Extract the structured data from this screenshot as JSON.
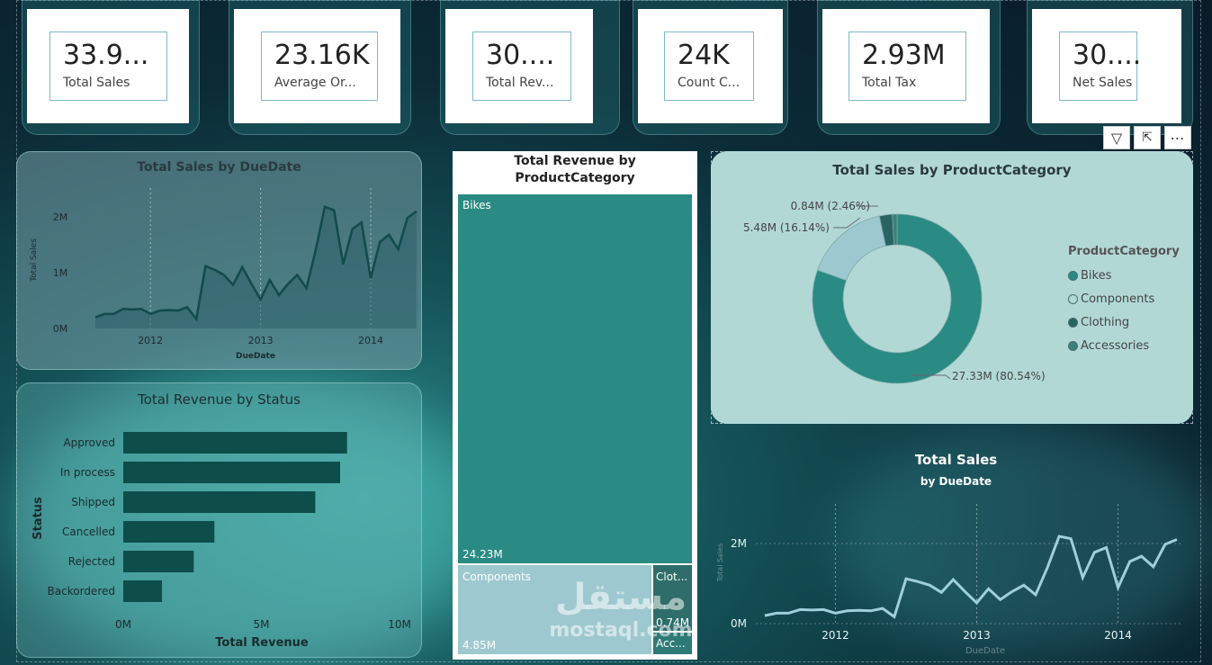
{
  "kpis": [
    {
      "value": "33.9...",
      "label": "Total Sales"
    },
    {
      "value": "23.16K",
      "label": "Average Or..."
    },
    {
      "value": "30....",
      "label": "Total Rev..."
    },
    {
      "value": "24K",
      "label": "Count C..."
    },
    {
      "value": "2.93M",
      "label": "Total Tax"
    },
    {
      "value": "30....",
      "label": "Net Sales"
    }
  ],
  "line1": {
    "title": "Total Sales by DueDate",
    "xlabel": "DueDate",
    "ylabel": "Total Sales",
    "yticks": [
      "2M",
      "1M",
      "0M"
    ],
    "xticks": [
      "2012",
      "2013",
      "2014"
    ]
  },
  "bars": {
    "title": "Total Revenue by Status",
    "xlabel": "Total Revenue",
    "ylabel": "Status",
    "xticks": [
      "0M",
      "5M",
      "10M"
    ]
  },
  "treemap": {
    "title_line1": "Total Revenue by",
    "title_line2": "ProductCategory",
    "tiles": [
      {
        "label": "Bikes",
        "value": "24.23M"
      },
      {
        "label": "Components",
        "value": "4.85M"
      },
      {
        "label": "Clot...",
        "value": "0.74M"
      },
      {
        "label": "Acc...",
        "value": ""
      }
    ]
  },
  "donut": {
    "title": "Total Sales by ProductCategory",
    "legend_title": "ProductCategory",
    "labels": {
      "bikes": "27.33M (80.54%)",
      "components": "5.48M (16.14%)",
      "clothing": "0.84M (2.46%)"
    }
  },
  "line2": {
    "title": "Total Sales",
    "subtitle": "by DueDate",
    "xlabel": "DueDate",
    "ylabel": "Total Sales",
    "yticks": [
      "2M",
      "0M"
    ],
    "xticks": [
      "2012",
      "2013",
      "2014"
    ]
  },
  "watermark": {
    "arabic": "مستقل",
    "latin": "mostaql.com"
  },
  "colors": {
    "teal": "#2a8a84",
    "dark_teal": "#0d4d4a",
    "light_blue": "#9ec8cf",
    "donut_panel": "#b2d8d6",
    "line_light": "#9ecfdb"
  },
  "chart_data": [
    {
      "type": "area",
      "title": "Total Sales by DueDate",
      "xlabel": "DueDate",
      "ylabel": "Total Sales",
      "ylim": [
        0,
        2300000
      ],
      "x_range": [
        "2011-07",
        "2014-06"
      ],
      "x": [
        "2011-07",
        "2011-08",
        "2011-09",
        "2011-10",
        "2011-11",
        "2011-12",
        "2012-01",
        "2012-02",
        "2012-03",
        "2012-04",
        "2012-05",
        "2012-06",
        "2012-07",
        "2012-08",
        "2012-09",
        "2012-10",
        "2012-11",
        "2012-12",
        "2013-01",
        "2013-02",
        "2013-03",
        "2013-04",
        "2013-05",
        "2013-06",
        "2013-07",
        "2013-08",
        "2013-09",
        "2013-10",
        "2013-11",
        "2013-12",
        "2014-01",
        "2014-02",
        "2014-03",
        "2014-04",
        "2014-05",
        "2014-06"
      ],
      "values": [
        200000,
        260000,
        260000,
        350000,
        340000,
        350000,
        260000,
        320000,
        330000,
        320000,
        380000,
        170000,
        1120000,
        1050000,
        960000,
        780000,
        1100000,
        800000,
        520000,
        870000,
        600000,
        800000,
        960000,
        720000,
        1400000,
        2180000,
        2120000,
        1150000,
        1780000,
        1900000,
        900000,
        1550000,
        1680000,
        1420000,
        1980000,
        2100000
      ]
    },
    {
      "type": "bar",
      "orientation": "horizontal",
      "title": "Total Revenue by Status",
      "xlabel": "Total Revenue",
      "ylabel": "Status",
      "categories": [
        "Approved",
        "In process",
        "Shipped",
        "Cancelled",
        "Rejected",
        "Backordered"
      ],
      "values": [
        8.1,
        7.85,
        6.95,
        3.3,
        2.55,
        1.4
      ],
      "xlim": [
        0,
        10
      ]
    },
    {
      "type": "treemap",
      "title": "Total Revenue by ProductCategory",
      "categories": [
        "Bikes",
        "Components",
        "Clothing",
        "Accessories"
      ],
      "values": [
        24.23,
        4.85,
        0.74,
        0.6
      ]
    },
    {
      "type": "pie",
      "variant": "donut",
      "title": "Total Sales by ProductCategory",
      "categories": [
        "Bikes",
        "Components",
        "Clothing",
        "Accessories"
      ],
      "values": [
        27.33,
        5.48,
        0.84,
        0.3
      ],
      "percent": [
        80.54,
        16.14,
        2.46,
        0.86
      ],
      "legend": "right"
    },
    {
      "type": "line",
      "title": "Total Sales",
      "subtitle": "by DueDate",
      "xlabel": "DueDate",
      "ylabel": "Total Sales",
      "ylim": [
        0,
        2300000
      ],
      "x_range": [
        "2011-07",
        "2014-06"
      ],
      "x": [
        "2011-07",
        "2011-08",
        "2011-09",
        "2011-10",
        "2011-11",
        "2011-12",
        "2012-01",
        "2012-02",
        "2012-03",
        "2012-04",
        "2012-05",
        "2012-06",
        "2012-07",
        "2012-08",
        "2012-09",
        "2012-10",
        "2012-11",
        "2012-12",
        "2013-01",
        "2013-02",
        "2013-03",
        "2013-04",
        "2013-05",
        "2013-06",
        "2013-07",
        "2013-08",
        "2013-09",
        "2013-10",
        "2013-11",
        "2013-12",
        "2014-01",
        "2014-02",
        "2014-03",
        "2014-04",
        "2014-05",
        "2014-06"
      ],
      "values": [
        200000,
        260000,
        260000,
        350000,
        340000,
        350000,
        260000,
        320000,
        330000,
        320000,
        380000,
        170000,
        1120000,
        1050000,
        960000,
        780000,
        1100000,
        800000,
        520000,
        870000,
        600000,
        800000,
        960000,
        720000,
        1400000,
        2180000,
        2120000,
        1150000,
        1780000,
        1900000,
        900000,
        1550000,
        1680000,
        1420000,
        1980000,
        2100000
      ]
    }
  ]
}
